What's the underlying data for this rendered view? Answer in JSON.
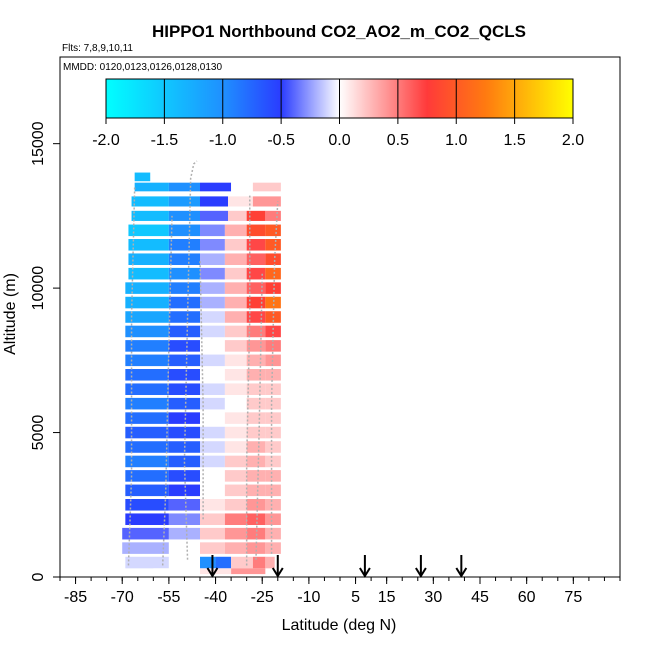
{
  "chart_data": {
    "type": "heatmap",
    "title": "HIPPO1 Northbound CO2_AO2_m_CO2_QCLS",
    "flights_label": "Flts: 7,8,9,10,11",
    "dates_label": "MMDD: 0120,0123,0126,0128,0130",
    "xlabel": "Latitude (deg N)",
    "ylabel": "Altitude (m)",
    "xlim": [
      -90,
      90
    ],
    "ylim": [
      0,
      18000
    ],
    "x_ticks": [
      -85,
      -70,
      -55,
      -40,
      -25,
      -10,
      5,
      15,
      30,
      45,
      60,
      75
    ],
    "x_tick_labels": [
      "-85",
      "-70",
      "-55",
      "-40",
      "-25",
      "-10",
      "5",
      "15",
      "30",
      "45",
      "60",
      "75"
    ],
    "x_minor_step": 5,
    "y_ticks": [
      0,
      5000,
      10000,
      15000
    ],
    "y_tick_labels": [
      "0",
      "5000",
      "10000",
      "15000"
    ],
    "colorbar": {
      "range": [
        -2.0,
        2.0
      ],
      "ticks": [
        -2.0,
        -1.5,
        -1.0,
        -0.5,
        0.0,
        0.5,
        1.0,
        1.5,
        2.0
      ],
      "tick_labels": [
        "-2.0",
        "-1.5",
        "-1.0",
        "-0.5",
        "0.0",
        "0.5",
        "1.0",
        "1.5",
        "2.0"
      ],
      "colors": [
        "#00ffff",
        "#1f90ff",
        "#2a3cff",
        "#ffffff",
        "#ff3a3a",
        "#ff7a10",
        "#ffff00"
      ]
    },
    "profile_latitudes": [
      -41,
      -20,
      8,
      26,
      39
    ],
    "rows": [
      {
        "alt": 13850,
        "h": 300,
        "lat0": -66,
        "cells": [
          [
            -66,
            -61,
            -1.4
          ]
        ]
      },
      {
        "alt": 13500,
        "h": 300,
        "lat0": -66,
        "cells": [
          [
            -66,
            -55,
            -1.3
          ],
          [
            -55,
            -45,
            -1.0
          ],
          [
            -45,
            -35,
            -0.5
          ],
          [
            -35,
            -28,
            0.0
          ],
          [
            -28,
            -19,
            0.2
          ]
        ]
      },
      {
        "alt": 13000,
        "h": 350,
        "lat0": -67,
        "cells": [
          [
            -67,
            -55,
            -1.4
          ],
          [
            -55,
            -45,
            -1.1
          ],
          [
            -45,
            -36,
            -0.5
          ],
          [
            -36,
            -28,
            0.1
          ],
          [
            -28,
            -19,
            0.4
          ]
        ]
      },
      {
        "alt": 12500,
        "h": 350,
        "lat0": -67,
        "cells": [
          [
            -67,
            -55,
            -1.4
          ],
          [
            -55,
            -45,
            -1.0
          ],
          [
            -45,
            -36,
            -0.4
          ],
          [
            -36,
            -30,
            0.2
          ],
          [
            -30,
            -24,
            0.8
          ],
          [
            -24,
            -19,
            0.5
          ]
        ]
      },
      {
        "alt": 12000,
        "h": 400,
        "lat0": -68,
        "cells": [
          [
            -68,
            -55,
            -1.5
          ],
          [
            -55,
            -45,
            -1.0
          ],
          [
            -45,
            -37,
            -0.3
          ],
          [
            -37,
            -30,
            0.3
          ],
          [
            -30,
            -24,
            0.9
          ],
          [
            -24,
            -19,
            1.0
          ]
        ]
      },
      {
        "alt": 11500,
        "h": 400,
        "lat0": -68,
        "cells": [
          [
            -68,
            -55,
            -1.4
          ],
          [
            -55,
            -45,
            -0.9
          ],
          [
            -45,
            -37,
            -0.3
          ],
          [
            -37,
            -30,
            0.2
          ],
          [
            -30,
            -24,
            0.7
          ],
          [
            -24,
            -19,
            1.0
          ]
        ]
      },
      {
        "alt": 11000,
        "h": 400,
        "lat0": -68,
        "cells": [
          [
            -68,
            -55,
            -1.3
          ],
          [
            -55,
            -45,
            -0.9
          ],
          [
            -45,
            -37,
            -0.2
          ],
          [
            -37,
            -30,
            0.3
          ],
          [
            -30,
            -24,
            0.6
          ],
          [
            -24,
            -19,
            0.9
          ]
        ]
      },
      {
        "alt": 10500,
        "h": 400,
        "lat0": -68,
        "cells": [
          [
            -68,
            -55,
            -1.4
          ],
          [
            -55,
            -45,
            -1.0
          ],
          [
            -45,
            -37,
            -0.3
          ],
          [
            -37,
            -30,
            0.2
          ],
          [
            -30,
            -24,
            0.7
          ],
          [
            -24,
            -19,
            1.1
          ]
        ]
      },
      {
        "alt": 10000,
        "h": 400,
        "lat0": -69,
        "cells": [
          [
            -69,
            -55,
            -1.3
          ],
          [
            -55,
            -45,
            -0.9
          ],
          [
            -45,
            -37,
            -0.2
          ],
          [
            -37,
            -30,
            0.3
          ],
          [
            -30,
            -24,
            0.6
          ],
          [
            -24,
            -19,
            0.8
          ]
        ]
      },
      {
        "alt": 9500,
        "h": 400,
        "lat0": -69,
        "cells": [
          [
            -69,
            -55,
            -1.3
          ],
          [
            -55,
            -45,
            -0.8
          ],
          [
            -45,
            -37,
            -0.2
          ],
          [
            -37,
            -30,
            0.3
          ],
          [
            -30,
            -24,
            0.8
          ],
          [
            -24,
            -19,
            1.2
          ]
        ]
      },
      {
        "alt": 9000,
        "h": 400,
        "lat0": -69,
        "cells": [
          [
            -69,
            -55,
            -1.2
          ],
          [
            -55,
            -45,
            -0.8
          ],
          [
            -45,
            -37,
            -0.1
          ],
          [
            -37,
            -30,
            0.3
          ],
          [
            -30,
            -24,
            0.7
          ],
          [
            -24,
            -19,
            1.0
          ]
        ]
      },
      {
        "alt": 8500,
        "h": 400,
        "lat0": -69,
        "cells": [
          [
            -69,
            -55,
            -1.0
          ],
          [
            -55,
            -45,
            -0.7
          ],
          [
            -45,
            -37,
            -0.1
          ],
          [
            -37,
            -30,
            0.2
          ],
          [
            -30,
            -24,
            0.5
          ],
          [
            -24,
            -19,
            0.7
          ]
        ]
      },
      {
        "alt": 8000,
        "h": 400,
        "lat0": -69,
        "cells": [
          [
            -69,
            -55,
            -0.9
          ],
          [
            -55,
            -45,
            -0.6
          ],
          [
            -45,
            -37,
            0.0
          ],
          [
            -37,
            -30,
            0.2
          ],
          [
            -30,
            -24,
            0.4
          ],
          [
            -24,
            -19,
            0.5
          ]
        ]
      },
      {
        "alt": 7500,
        "h": 400,
        "lat0": -69,
        "cells": [
          [
            -69,
            -55,
            -0.9
          ],
          [
            -55,
            -45,
            -0.7
          ],
          [
            -45,
            -37,
            -0.1
          ],
          [
            -37,
            -30,
            0.1
          ],
          [
            -30,
            -24,
            0.3
          ],
          [
            -24,
            -19,
            0.4
          ]
        ]
      },
      {
        "alt": 7000,
        "h": 400,
        "lat0": -69,
        "cells": [
          [
            -69,
            -55,
            -0.8
          ],
          [
            -55,
            -45,
            -0.6
          ],
          [
            -45,
            -37,
            0.0
          ],
          [
            -37,
            -30,
            0.1
          ],
          [
            -30,
            -24,
            0.3
          ],
          [
            -24,
            -19,
            0.3
          ]
        ]
      },
      {
        "alt": 6500,
        "h": 400,
        "lat0": -69,
        "cells": [
          [
            -69,
            -55,
            -0.8
          ],
          [
            -55,
            -45,
            -0.6
          ],
          [
            -45,
            -37,
            -0.1
          ],
          [
            -37,
            -30,
            0.1
          ],
          [
            -30,
            -24,
            0.2
          ],
          [
            -24,
            -19,
            0.2
          ]
        ]
      },
      {
        "alt": 6000,
        "h": 400,
        "lat0": -69,
        "cells": [
          [
            -69,
            -55,
            -0.9
          ],
          [
            -55,
            -45,
            -0.7
          ],
          [
            -45,
            -37,
            -0.1
          ],
          [
            -37,
            -30,
            0.0
          ],
          [
            -30,
            -24,
            0.2
          ],
          [
            -24,
            -19,
            0.2
          ]
        ]
      },
      {
        "alt": 5500,
        "h": 400,
        "lat0": -69,
        "cells": [
          [
            -69,
            -55,
            -0.8
          ],
          [
            -55,
            -45,
            -0.5
          ],
          [
            -45,
            -37,
            0.0
          ],
          [
            -37,
            -30,
            0.1
          ],
          [
            -30,
            -24,
            0.2
          ],
          [
            -24,
            -19,
            0.2
          ]
        ]
      },
      {
        "alt": 5000,
        "h": 400,
        "lat0": -69,
        "cells": [
          [
            -69,
            -55,
            -0.7
          ],
          [
            -55,
            -45,
            -0.6
          ],
          [
            -45,
            -37,
            -0.1
          ],
          [
            -37,
            -30,
            0.1
          ],
          [
            -30,
            -24,
            0.2
          ],
          [
            -24,
            -19,
            0.2
          ]
        ]
      },
      {
        "alt": 4500,
        "h": 400,
        "lat0": -69,
        "cells": [
          [
            -69,
            -55,
            -0.8
          ],
          [
            -55,
            -45,
            -0.7
          ],
          [
            -45,
            -37,
            -0.1
          ],
          [
            -37,
            -30,
            0.1
          ],
          [
            -30,
            -24,
            0.3
          ],
          [
            -24,
            -19,
            0.2
          ]
        ]
      },
      {
        "alt": 4000,
        "h": 400,
        "lat0": -69,
        "cells": [
          [
            -69,
            -55,
            -0.9
          ],
          [
            -55,
            -45,
            -0.7
          ],
          [
            -45,
            -37,
            -0.1
          ],
          [
            -37,
            -30,
            0.2
          ],
          [
            -30,
            -24,
            0.3
          ],
          [
            -24,
            -19,
            0.2
          ]
        ]
      },
      {
        "alt": 3500,
        "h": 400,
        "lat0": -69,
        "cells": [
          [
            -69,
            -55,
            -0.8
          ],
          [
            -55,
            -45,
            -0.6
          ],
          [
            -45,
            -37,
            0.0
          ],
          [
            -37,
            -30,
            0.2
          ],
          [
            -30,
            -24,
            0.3
          ],
          [
            -24,
            -19,
            0.3
          ]
        ]
      },
      {
        "alt": 3000,
        "h": 400,
        "lat0": -69,
        "cells": [
          [
            -69,
            -55,
            -0.7
          ],
          [
            -55,
            -45,
            -0.5
          ],
          [
            -45,
            -37,
            0.0
          ],
          [
            -37,
            -30,
            0.2
          ],
          [
            -30,
            -24,
            0.3
          ],
          [
            -24,
            -19,
            0.3
          ]
        ]
      },
      {
        "alt": 2500,
        "h": 400,
        "lat0": -69,
        "cells": [
          [
            -69,
            -55,
            -0.6
          ],
          [
            -55,
            -45,
            -0.4
          ],
          [
            -45,
            -37,
            0.1
          ],
          [
            -37,
            -30,
            0.2
          ],
          [
            -30,
            -24,
            0.4
          ],
          [
            -24,
            -19,
            0.3
          ]
        ]
      },
      {
        "alt": 2000,
        "h": 400,
        "lat0": -69,
        "cells": [
          [
            -69,
            -55,
            -0.5
          ],
          [
            -55,
            -45,
            -0.3
          ],
          [
            -45,
            -37,
            0.2
          ],
          [
            -37,
            -30,
            0.5
          ],
          [
            -30,
            -24,
            0.6
          ],
          [
            -24,
            -19,
            0.4
          ]
        ]
      },
      {
        "alt": 1500,
        "h": 400,
        "lat0": -70,
        "cells": [
          [
            -70,
            -55,
            -0.4
          ],
          [
            -55,
            -45,
            -0.2
          ],
          [
            -45,
            -37,
            0.2
          ],
          [
            -37,
            -30,
            0.4
          ],
          [
            -30,
            -24,
            0.5
          ],
          [
            -24,
            -19,
            0.3
          ]
        ]
      },
      {
        "alt": 1000,
        "h": 400,
        "lat0": -70,
        "cells": [
          [
            -70,
            -55,
            -0.2
          ],
          [
            -55,
            -45,
            0.0
          ],
          [
            -45,
            -37,
            0.2
          ],
          [
            -37,
            -30,
            0.3
          ],
          [
            -30,
            -24,
            0.4
          ],
          [
            -24,
            -19,
            0.3
          ]
        ]
      },
      {
        "alt": 500,
        "h": 400,
        "lat0": -69,
        "cells": [
          [
            -69,
            -55,
            -0.1
          ],
          [
            -55,
            -45,
            0.0
          ],
          [
            -45,
            -40,
            -1.0
          ],
          [
            -40,
            -35,
            -0.8
          ],
          [
            -35,
            -28,
            0.2
          ],
          [
            -28,
            -24,
            0.5
          ],
          [
            -24,
            -21,
            0.3
          ]
        ]
      },
      {
        "alt": 200,
        "h": 200,
        "lat0": -60,
        "cells": [
          [
            -60,
            -45,
            0.0
          ],
          [
            -45,
            -35,
            0.1
          ],
          [
            -35,
            -24,
            0.4
          ]
        ]
      }
    ],
    "flight_tracks": [
      {
        "points": [
          [
            -68,
            400
          ],
          [
            -67,
            3500
          ],
          [
            -67,
            9000
          ],
          [
            -66,
            13500
          ]
        ]
      },
      {
        "points": [
          [
            -57,
            400
          ],
          [
            -56,
            3000
          ],
          [
            -55,
            8000
          ],
          [
            -54,
            12500
          ]
        ]
      },
      {
        "points": [
          [
            -49,
            600
          ],
          [
            -50,
            4000
          ],
          [
            -49,
            9000
          ],
          [
            -48,
            13800
          ],
          [
            -47,
            14300
          ],
          [
            -46,
            14400
          ]
        ]
      },
      {
        "points": [
          [
            -44,
            2000
          ],
          [
            -44,
            6000
          ],
          [
            -45,
            11000
          ]
        ]
      },
      {
        "points": [
          [
            -30,
            400
          ],
          [
            -30,
            4000
          ],
          [
            -29,
            9000
          ],
          [
            -29,
            13200
          ]
        ]
      },
      {
        "points": [
          [
            -27,
            600
          ],
          [
            -26,
            5000
          ],
          [
            -25,
            10500
          ]
        ]
      },
      {
        "points": [
          [
            -22,
            800
          ],
          [
            -22,
            6000
          ],
          [
            -21,
            11000
          ],
          [
            -20,
            13000
          ]
        ]
      }
    ]
  }
}
